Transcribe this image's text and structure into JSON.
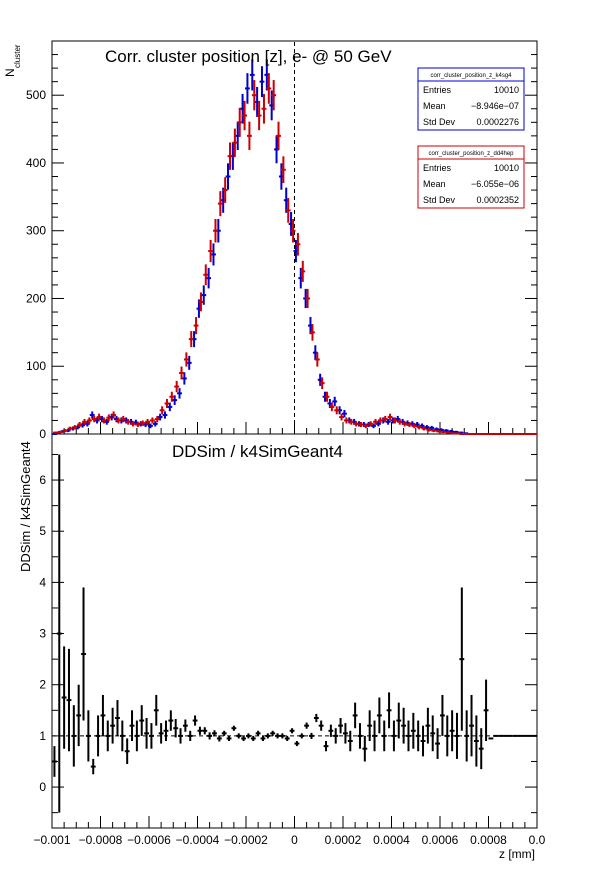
{
  "top_panel": {
    "title": "Corr. cluster position [z],  e- @ 50 GeV",
    "ylabel_main": "N",
    "ylabel_sub": "cluster",
    "yticks": [
      "0",
      "100",
      "200",
      "300",
      "400",
      "500"
    ],
    "ref_line_x": 0
  },
  "stats_boxes": [
    {
      "name": "corr_cluster_position_z_k4sg4",
      "color": "#0000cc",
      "rows": [
        [
          "Entries",
          "10010"
        ],
        [
          "Mean",
          "−8.946e−07"
        ],
        [
          "Std Dev",
          "0.0002276"
        ]
      ]
    },
    {
      "name": "corr_cluster_position_z_dd4hep",
      "color": "#cc0000",
      "rows": [
        [
          "Entries",
          "10010"
        ],
        [
          "Mean",
          "−6.055e−06"
        ],
        [
          "Std Dev",
          "0.0002352"
        ]
      ]
    }
  ],
  "bottom_panel": {
    "title": "DDSim / k4SimGeant4",
    "ylabel": "DDSim / k4SimGeant4",
    "yticks": [
      "0",
      "1",
      "2",
      "3",
      "4",
      "5",
      "6"
    ],
    "xlabel": "z [mm]",
    "xticks": [
      "−0.001",
      "−0.0008",
      "−0.0006",
      "−0.0004",
      "−0.0002",
      "0",
      "0.0002",
      "0.0004",
      "0.0006",
      "0.0008",
      "0.0"
    ],
    "ref_line_y": 1
  },
  "chart_data": [
    {
      "type": "histogram",
      "title": "Corr. cluster position [z],  e- @ 50 GeV",
      "xlim": [
        -0.001,
        0.001
      ],
      "ylim": [
        0,
        580
      ],
      "bin_width": 2e-05,
      "series": [
        {
          "name": "corr_cluster_position_z_k4sg4",
          "color": "#0000cc",
          "x": [
            -0.00099,
            -0.00097,
            -0.00095,
            -0.00093,
            -0.00091,
            -0.00089,
            -0.00087,
            -0.00085,
            -0.00083,
            -0.00081,
            -0.00079,
            -0.00077,
            -0.00075,
            -0.00073,
            -0.00071,
            -0.00069,
            -0.00067,
            -0.00065,
            -0.00063,
            -0.00061,
            -0.00059,
            -0.00057,
            -0.00055,
            -0.00053,
            -0.00051,
            -0.00049,
            -0.00047,
            -0.00045,
            -0.00043,
            -0.00041,
            -0.00039,
            -0.00037,
            -0.00035,
            -0.00033,
            -0.00031,
            -0.00029,
            -0.00027,
            -0.00025,
            -0.00023,
            -0.00021,
            -0.00019,
            -0.00017,
            -0.00015,
            -0.00013,
            -0.00011,
            -9e-05,
            -7e-05,
            -5e-05,
            -3e-05,
            -1e-05,
            1e-05,
            3e-05,
            5e-05,
            7e-05,
            9e-05,
            0.00011,
            0.00013,
            0.00015,
            0.00017,
            0.00019,
            0.00021,
            0.00023,
            0.00025,
            0.00027,
            0.00029,
            0.00031,
            0.00033,
            0.00035,
            0.00037,
            0.00039,
            0.00041,
            0.00043,
            0.00045,
            0.00047,
            0.00049,
            0.00051,
            0.00053,
            0.00055,
            0.00057,
            0.00059,
            0.00061,
            0.00063,
            0.00065,
            0.00067,
            0.00069,
            0.00071,
            0.00073,
            0.00075,
            0.00077,
            0.00079,
            0.00081,
            0.00083,
            0.00085,
            0.00087,
            0.00089,
            0.00091,
            0.00093,
            0.00095,
            0.00097,
            0.00099
          ],
          "y": [
            0,
            2,
            4,
            5,
            8,
            10,
            13,
            15,
            28,
            20,
            22,
            18,
            25,
            22,
            20,
            20,
            18,
            17,
            15,
            14,
            12,
            15,
            25,
            28,
            40,
            50,
            60,
            82,
            105,
            140,
            185,
            205,
            230,
            265,
            300,
            345,
            380,
            410,
            440,
            480,
            510,
            530,
            490,
            520,
            530,
            485,
            420,
            380,
            345,
            310,
            270,
            230,
            200,
            160,
            120,
            80,
            55,
            45,
            48,
            35,
            30,
            20,
            18,
            15,
            14,
            14,
            12,
            15,
            20,
            18,
            20,
            22,
            18,
            16,
            15,
            14,
            12,
            10,
            9,
            7,
            6,
            5,
            4,
            3,
            2,
            1,
            0,
            0,
            0,
            0,
            0,
            0,
            0,
            0,
            0,
            0,
            0,
            0,
            0,
            0
          ]
        },
        {
          "name": "corr_cluster_position_z_dd4hep",
          "color": "#cc0000",
          "x": [
            -0.00099,
            -0.00097,
            -0.00095,
            -0.00093,
            -0.00091,
            -0.00089,
            -0.00087,
            -0.00085,
            -0.00083,
            -0.00081,
            -0.00079,
            -0.00077,
            -0.00075,
            -0.00073,
            -0.00071,
            -0.00069,
            -0.00067,
            -0.00065,
            -0.00063,
            -0.00061,
            -0.00059,
            -0.00057,
            -0.00055,
            -0.00053,
            -0.00051,
            -0.00049,
            -0.00047,
            -0.00045,
            -0.00043,
            -0.00041,
            -0.00039,
            -0.00037,
            -0.00035,
            -0.00033,
            -0.00031,
            -0.00029,
            -0.00027,
            -0.00025,
            -0.00023,
            -0.00021,
            -0.00019,
            -0.00017,
            -0.00015,
            -0.00013,
            -0.00011,
            -9e-05,
            -7e-05,
            -5e-05,
            -3e-05,
            -1e-05,
            1e-05,
            3e-05,
            5e-05,
            7e-05,
            9e-05,
            0.00011,
            0.00013,
            0.00015,
            0.00017,
            0.00019,
            0.00021,
            0.00023,
            0.00025,
            0.00027,
            0.00029,
            0.00031,
            0.00033,
            0.00035,
            0.00037,
            0.00039,
            0.00041,
            0.00043,
            0.00045,
            0.00047,
            0.00049,
            0.00051,
            0.00053,
            0.00055,
            0.00057,
            0.00059,
            0.00061,
            0.00063,
            0.00065,
            0.00067,
            0.00069,
            0.00071,
            0.00073,
            0.00075,
            0.00077,
            0.00079,
            0.00081,
            0.00083,
            0.00085,
            0.00087,
            0.00089,
            0.00091,
            0.00093,
            0.00095,
            0.00097,
            0.00099
          ],
          "y": [
            2,
            3,
            5,
            8,
            10,
            14,
            18,
            20,
            22,
            25,
            20,
            24,
            28,
            20,
            22,
            18,
            15,
            14,
            16,
            18,
            20,
            22,
            35,
            45,
            55,
            70,
            90,
            110,
            140,
            160,
            195,
            235,
            270,
            300,
            340,
            360,
            410,
            430,
            460,
            470,
            440,
            500,
            470,
            480,
            510,
            500,
            440,
            390,
            330,
            300,
            280,
            240,
            200,
            150,
            110,
            75,
            55,
            40,
            35,
            25,
            20,
            18,
            15,
            14,
            12,
            15,
            18,
            20,
            22,
            25,
            20,
            18,
            15,
            14,
            12,
            10,
            8,
            6,
            5,
            4,
            3,
            2,
            1,
            1,
            0,
            0,
            0,
            0,
            0,
            0,
            0,
            0,
            0,
            0,
            0,
            0,
            0,
            0,
            0,
            0
          ]
        }
      ]
    },
    {
      "type": "ratio",
      "title": "DDSim / k4SimGeant4",
      "xlabel": "z [mm]",
      "ylabel": "DDSim / k4SimGeant4",
      "xlim": [
        -0.001,
        0.001
      ],
      "ylim": [
        -0.8,
        6.9
      ],
      "bin_width": 2e-05,
      "x": [
        -0.00099,
        -0.00097,
        -0.00095,
        -0.00093,
        -0.00091,
        -0.00089,
        -0.00087,
        -0.00085,
        -0.00083,
        -0.00081,
        -0.00079,
        -0.00077,
        -0.00075,
        -0.00073,
        -0.00071,
        -0.00069,
        -0.00067,
        -0.00065,
        -0.00063,
        -0.00061,
        -0.00059,
        -0.00057,
        -0.00055,
        -0.00053,
        -0.00051,
        -0.00049,
        -0.00047,
        -0.00045,
        -0.00043,
        -0.00041,
        -0.00039,
        -0.00037,
        -0.00035,
        -0.00033,
        -0.00031,
        -0.00029,
        -0.00027,
        -0.00025,
        -0.00023,
        -0.00021,
        -0.00019,
        -0.00017,
        -0.00015,
        -0.00013,
        -0.00011,
        -9e-05,
        -7e-05,
        -5e-05,
        -3e-05,
        -1e-05,
        1e-05,
        3e-05,
        5e-05,
        7e-05,
        9e-05,
        0.00011,
        0.00013,
        0.00015,
        0.00017,
        0.00019,
        0.00021,
        0.00023,
        0.00025,
        0.00027,
        0.00029,
        0.00031,
        0.00033,
        0.00035,
        0.00037,
        0.00039,
        0.00041,
        0.00043,
        0.00045,
        0.00047,
        0.00049,
        0.00051,
        0.00053,
        0.00055,
        0.00057,
        0.00059,
        0.00061,
        0.00063,
        0.00065,
        0.00067,
        0.00069,
        0.00071,
        0.00073,
        0.00075,
        0.00077,
        0.00079,
        0.00081,
        0.00083,
        0.00085,
        0.00087,
        0.00089,
        0.00091,
        0.00093,
        0.00095,
        0.00097,
        0.00099
      ],
      "y": [
        0.5,
        3.0,
        1.75,
        1.7,
        1.0,
        1.4,
        2.6,
        1.0,
        0.4,
        1.0,
        1.4,
        1.0,
        1.2,
        1.35,
        1.0,
        0.7,
        1.2,
        1.0,
        1.3,
        1.05,
        1.0,
        1.5,
        1.05,
        1.1,
        1.3,
        1.15,
        1.0,
        1.2,
        1.0,
        1.3,
        1.1,
        1.1,
        1.0,
        1.05,
        0.95,
        1.05,
        0.95,
        1.15,
        1.0,
        0.95,
        1.0,
        0.95,
        1.05,
        0.95,
        1.0,
        1.05,
        1.0,
        1.0,
        0.95,
        1.1,
        0.85,
        1.0,
        1.2,
        1.0,
        1.35,
        1.2,
        0.8,
        1.1,
        1.0,
        1.2,
        1.05,
        0.9,
        1.4,
        1.0,
        0.75,
        1.2,
        1.0,
        1.4,
        1.0,
        1.5,
        1.0,
        1.3,
        1.2,
        1.0,
        1.1,
        1.0,
        0.9,
        1.2,
        1.05,
        0.85,
        1.4,
        1.0,
        1.1,
        1.0,
        2.5,
        1.0,
        1.2,
        0.9,
        0.75,
        1.5,
        0.95,
        1.0,
        1.0,
        1.0,
        1.0,
        1.0,
        1.0,
        1.0,
        1.0,
        1.0
      ],
      "err": [
        0.3,
        3.5,
        1.0,
        1.0,
        0.6,
        0.6,
        1.3,
        0.5,
        0.15,
        0.4,
        0.4,
        0.3,
        0.35,
        0.35,
        0.3,
        0.25,
        0.3,
        0.3,
        0.3,
        0.3,
        0.25,
        0.3,
        0.2,
        0.2,
        0.2,
        0.18,
        0.15,
        0.12,
        0.1,
        0.1,
        0.08,
        0.07,
        0.07,
        0.06,
        0.06,
        0.05,
        0.05,
        0.05,
        0.05,
        0.05,
        0.05,
        0.05,
        0.05,
        0.05,
        0.05,
        0.05,
        0.05,
        0.05,
        0.05,
        0.05,
        0.05,
        0.05,
        0.06,
        0.06,
        0.08,
        0.1,
        0.1,
        0.12,
        0.15,
        0.15,
        0.2,
        0.2,
        0.25,
        0.25,
        0.25,
        0.3,
        0.3,
        0.35,
        0.3,
        0.35,
        0.3,
        0.35,
        0.35,
        0.3,
        0.35,
        0.3,
        0.3,
        0.35,
        0.35,
        0.3,
        0.4,
        0.4,
        0.4,
        0.45,
        1.4,
        0.5,
        0.6,
        0.5,
        0.4,
        0.6,
        0,
        0,
        0,
        0,
        0,
        0,
        0,
        0,
        0,
        0
      ]
    }
  ]
}
